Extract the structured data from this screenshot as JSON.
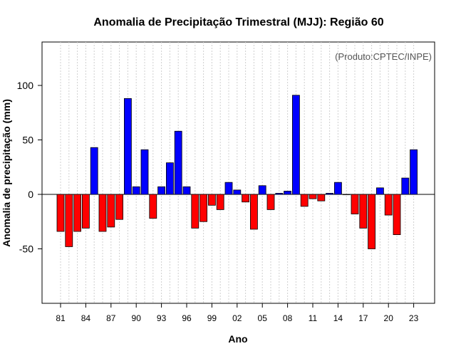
{
  "chart_data": {
    "type": "bar",
    "title": "Anomalia de Precipitação Trimestral (MJJ): Região 60",
    "credit": "(Produto:CPTEC/INPE)",
    "xlabel": "Ano",
    "ylabel": "Anomalia de precipitação (mm)",
    "ylim": [
      -100,
      140
    ],
    "yticks": [
      -50,
      0,
      50,
      100
    ],
    "years": [
      1981,
      1982,
      1983,
      1984,
      1985,
      1986,
      1987,
      1988,
      1989,
      1990,
      1991,
      1992,
      1993,
      1994,
      1995,
      1996,
      1997,
      1998,
      1999,
      2000,
      2001,
      2002,
      2003,
      2004,
      2005,
      2006,
      2007,
      2008,
      2009,
      2010,
      2011,
      2012,
      2013,
      2014,
      2015,
      2016,
      2017,
      2018,
      2019,
      2020,
      2021,
      2022,
      2023
    ],
    "values": [
      -34,
      -48,
      -34,
      -31,
      43,
      -34,
      -30,
      -23,
      88,
      7,
      41,
      -22,
      7,
      29,
      58,
      7,
      -31,
      -25,
      -10,
      -14,
      11,
      4,
      -7,
      -32,
      8,
      -14,
      1,
      3,
      91,
      -11,
      -4,
      -6,
      1,
      11,
      0,
      -18,
      -31,
      -50,
      6,
      -19,
      -37,
      15,
      41
    ],
    "xticks": [
      "81",
      "84",
      "87",
      "90",
      "93",
      "96",
      "99",
      "02",
      "05",
      "08",
      "11",
      "14",
      "17",
      "20",
      "23"
    ],
    "xtick_years": [
      1981,
      1984,
      1987,
      1990,
      1993,
      1996,
      1999,
      2002,
      2005,
      2008,
      2011,
      2014,
      2017,
      2020,
      2023
    ],
    "colors": {
      "positive": "#0000ff",
      "negative": "#ff0000",
      "grid": "#d0d0d0"
    }
  }
}
